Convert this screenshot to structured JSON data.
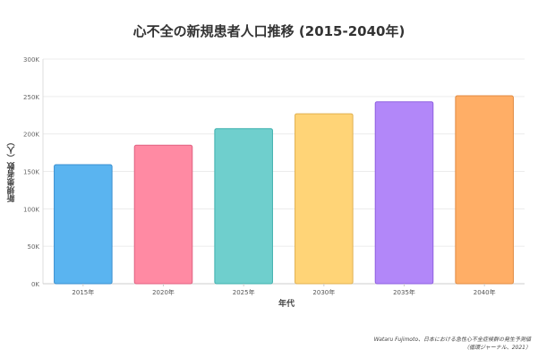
{
  "chart_data": {
    "type": "bar",
    "title": "心不全の新規患者人口推移 (2015-2040年)",
    "xlabel": "年代",
    "ylabel": "新規患者数（人）",
    "categories": [
      "2015年",
      "2020年",
      "2025年",
      "2030年",
      "2035年",
      "2040年"
    ],
    "values": [
      159000,
      185000,
      207000,
      227000,
      243000,
      251000
    ],
    "ylim": [
      0,
      300000
    ],
    "yticks": [
      0,
      50000,
      100000,
      150000,
      200000,
      250000,
      300000
    ],
    "ytick_labels": [
      "0K",
      "50K",
      "100K",
      "150K",
      "200K",
      "250K",
      "300K"
    ],
    "grid": true,
    "legend": "none",
    "colors": [
      "#5ab4f0",
      "#ff8aa3",
      "#6fcfcd",
      "#ffd477",
      "#b287f9",
      "#ffae66"
    ],
    "border_colors": [
      "#3a8fd0",
      "#e06080",
      "#3fb0ae",
      "#e0b04f",
      "#8f60e0",
      "#e08a40"
    ]
  },
  "source": {
    "line1": "Wataru Fujimoto、日本における急性心不全症候群の発生予測値",
    "line2": "（循環ジャーナル、2021）"
  }
}
